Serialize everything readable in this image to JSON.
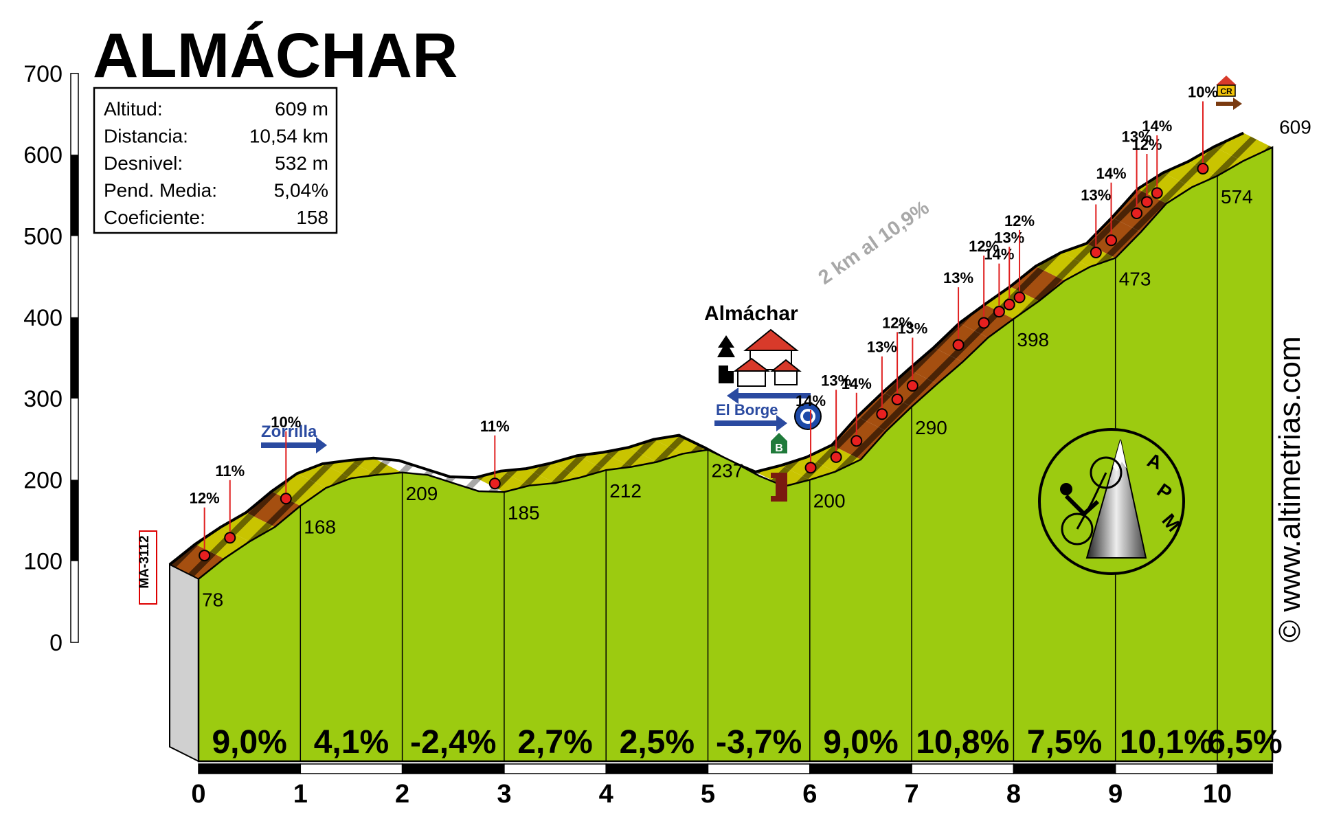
{
  "chart_data": {
    "type": "area",
    "title": "ALMÁCHAR",
    "stats": [
      {
        "label": "Altitud:",
        "value": "609 m"
      },
      {
        "label": "Distancia:",
        "value": "10,54 km"
      },
      {
        "label": "Desnivel:",
        "value": "532 m"
      },
      {
        "label": "Pend. Media:",
        "value": "5,04%"
      },
      {
        "label": "Coeficiente:",
        "value": "158"
      }
    ],
    "xlim": [
      0,
      10.54
    ],
    "ylim": [
      0,
      700
    ],
    "yticks": [
      "0",
      "100",
      "200",
      "300",
      "400",
      "500",
      "600",
      "700"
    ],
    "xticks": [
      "0",
      "1",
      "2",
      "3",
      "4",
      "5",
      "6",
      "7",
      "8",
      "9",
      "10"
    ],
    "km_markers": [
      {
        "km": 0,
        "alt": 78,
        "label": "78"
      },
      {
        "km": 1,
        "alt": 168,
        "label": "168"
      },
      {
        "km": 2,
        "alt": 209,
        "label": "209"
      },
      {
        "km": 3,
        "alt": 185,
        "label": "185"
      },
      {
        "km": 4,
        "alt": 212,
        "label": "212"
      },
      {
        "km": 5,
        "alt": 237,
        "label": "237"
      },
      {
        "km": 6,
        "alt": 200,
        "label": "200"
      },
      {
        "km": 7,
        "alt": 290,
        "label": "290"
      },
      {
        "km": 8,
        "alt": 398,
        "label": "398"
      },
      {
        "km": 9,
        "alt": 473,
        "label": "473"
      },
      {
        "km": 10,
        "alt": 574,
        "label": "574"
      },
      {
        "km": 10.54,
        "alt": 609,
        "label": "609"
      }
    ],
    "segment_gradients": [
      "9,0%",
      "4,1%",
      "-2,4%",
      "2,7%",
      "2,5%",
      "-3,7%",
      "9,0%",
      "10,8%",
      "7,5%",
      "10,1%",
      "6,5%"
    ],
    "profile": [
      [
        0,
        78
      ],
      [
        0.25,
        103
      ],
      [
        0.5,
        124
      ],
      [
        0.75,
        142
      ],
      [
        1,
        168
      ],
      [
        1.25,
        190
      ],
      [
        1.5,
        202
      ],
      [
        1.75,
        206
      ],
      [
        2,
        209
      ],
      [
        2.25,
        206
      ],
      [
        2.5,
        196
      ],
      [
        2.75,
        186
      ],
      [
        3,
        185
      ],
      [
        3.25,
        193
      ],
      [
        3.5,
        196
      ],
      [
        3.75,
        203
      ],
      [
        4,
        212
      ],
      [
        4.25,
        216
      ],
      [
        4.5,
        222
      ],
      [
        4.75,
        232
      ],
      [
        5,
        237
      ],
      [
        5.25,
        222
      ],
      [
        5.5,
        205
      ],
      [
        5.75,
        192
      ],
      [
        6,
        200
      ],
      [
        6.25,
        210
      ],
      [
        6.5,
        225
      ],
      [
        6.75,
        260
      ],
      [
        7,
        290
      ],
      [
        7.25,
        318
      ],
      [
        7.5,
        345
      ],
      [
        7.75,
        375
      ],
      [
        8,
        398
      ],
      [
        8.25,
        420
      ],
      [
        8.5,
        445
      ],
      [
        8.75,
        462
      ],
      [
        9,
        473
      ],
      [
        9.25,
        505
      ],
      [
        9.5,
        540
      ],
      [
        9.75,
        560
      ],
      [
        10,
        574
      ],
      [
        10.25,
        592
      ],
      [
        10.54,
        609
      ]
    ],
    "steep_ramps": [
      {
        "km": 0.2,
        "label": "12%"
      },
      {
        "km": 0.45,
        "label": "11%"
      },
      {
        "km": 1.0,
        "label": "10%"
      },
      {
        "km": 3.05,
        "label": "11%"
      },
      {
        "km": 6.15,
        "label": "14%"
      },
      {
        "km": 6.4,
        "label": "13%"
      },
      {
        "km": 6.6,
        "label": "14%"
      },
      {
        "km": 6.85,
        "label": "13%"
      },
      {
        "km": 7.0,
        "label": "12%"
      },
      {
        "km": 7.15,
        "label": "13%"
      },
      {
        "km": 7.6,
        "label": "13%"
      },
      {
        "km": 7.85,
        "label": "12%"
      },
      {
        "km": 8.0,
        "label": "14%"
      },
      {
        "km": 8.1,
        "label": "13%"
      },
      {
        "km": 8.2,
        "label": "12%"
      },
      {
        "km": 8.95,
        "label": "13%"
      },
      {
        "km": 9.1,
        "label": "14%"
      },
      {
        "km": 9.35,
        "label": "13%"
      },
      {
        "km": 9.45,
        "label": "12%"
      },
      {
        "km": 9.55,
        "label": "14%"
      },
      {
        "km": 10.0,
        "label": "10%"
      }
    ],
    "annotations": {
      "road_code": "MA-3112",
      "zorrilla": "Zorrilla",
      "almachar": "Almáchar",
      "el_borge": "El Borge",
      "climb_note": "2 km al 10,9%",
      "website": "© www.altimetrias.com",
      "logo_letters": [
        "A",
        "P",
        "M"
      ],
      "cr_sign": "CR",
      "b_sign": "B"
    }
  }
}
